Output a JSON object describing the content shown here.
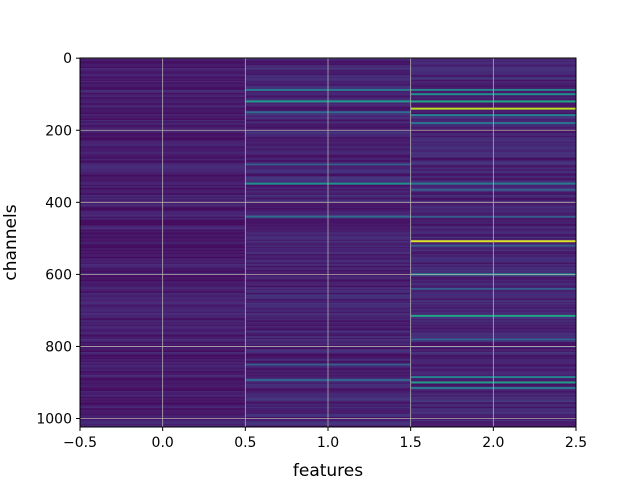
{
  "chart_data": {
    "type": "heatmap",
    "title": "",
    "xlabel": "features",
    "ylabel": "channels",
    "xlim": [
      -0.5,
      2.5
    ],
    "ylim": [
      1023.5,
      -0.5
    ],
    "y_inverted": true,
    "columns": 3,
    "rows": 1024,
    "colormap": "viridis",
    "grid": true,
    "x_ticks": [
      -0.5,
      0.0,
      0.5,
      1.0,
      1.5,
      2.0,
      2.5
    ],
    "x_tick_labels": [
      "−0.5",
      "0.0",
      "0.5",
      "1.0",
      "1.5",
      "2.0",
      "2.5"
    ],
    "y_ticks": [
      0,
      200,
      400,
      600,
      800,
      1000
    ],
    "y_tick_labels": [
      "0",
      "200",
      "400",
      "600",
      "800",
      "1000"
    ],
    "highlights": [
      {
        "column": 1,
        "channel": 88,
        "value": 0.42
      },
      {
        "column": 1,
        "channel": 120,
        "value": 0.55
      },
      {
        "column": 1,
        "channel": 150,
        "value": 0.35
      },
      {
        "column": 1,
        "channel": 295,
        "value": 0.3
      },
      {
        "column": 1,
        "channel": 348,
        "value": 0.5
      },
      {
        "column": 1,
        "channel": 440,
        "value": 0.35
      },
      {
        "column": 1,
        "channel": 850,
        "value": 0.3
      },
      {
        "column": 1,
        "channel": 893,
        "value": 0.32
      },
      {
        "column": 2,
        "channel": 88,
        "value": 0.45
      },
      {
        "column": 2,
        "channel": 100,
        "value": 0.5
      },
      {
        "column": 2,
        "channel": 120,
        "value": 0.6
      },
      {
        "column": 2,
        "channel": 140,
        "value": 0.9
      },
      {
        "column": 2,
        "channel": 158,
        "value": 0.45
      },
      {
        "column": 2,
        "channel": 180,
        "value": 0.38
      },
      {
        "column": 2,
        "channel": 348,
        "value": 0.4
      },
      {
        "column": 2,
        "channel": 365,
        "value": 0.3
      },
      {
        "column": 2,
        "channel": 440,
        "value": 0.3
      },
      {
        "column": 2,
        "channel": 508,
        "value": 0.95
      },
      {
        "column": 2,
        "channel": 520,
        "value": 0.3
      },
      {
        "column": 2,
        "channel": 600,
        "value": 0.5
      },
      {
        "column": 2,
        "channel": 640,
        "value": 0.3
      },
      {
        "column": 2,
        "channel": 715,
        "value": 0.6
      },
      {
        "column": 2,
        "channel": 780,
        "value": 0.3
      },
      {
        "column": 2,
        "channel": 885,
        "value": 0.45
      },
      {
        "column": 2,
        "channel": 900,
        "value": 0.55
      },
      {
        "column": 2,
        "channel": 915,
        "value": 0.4
      }
    ]
  }
}
